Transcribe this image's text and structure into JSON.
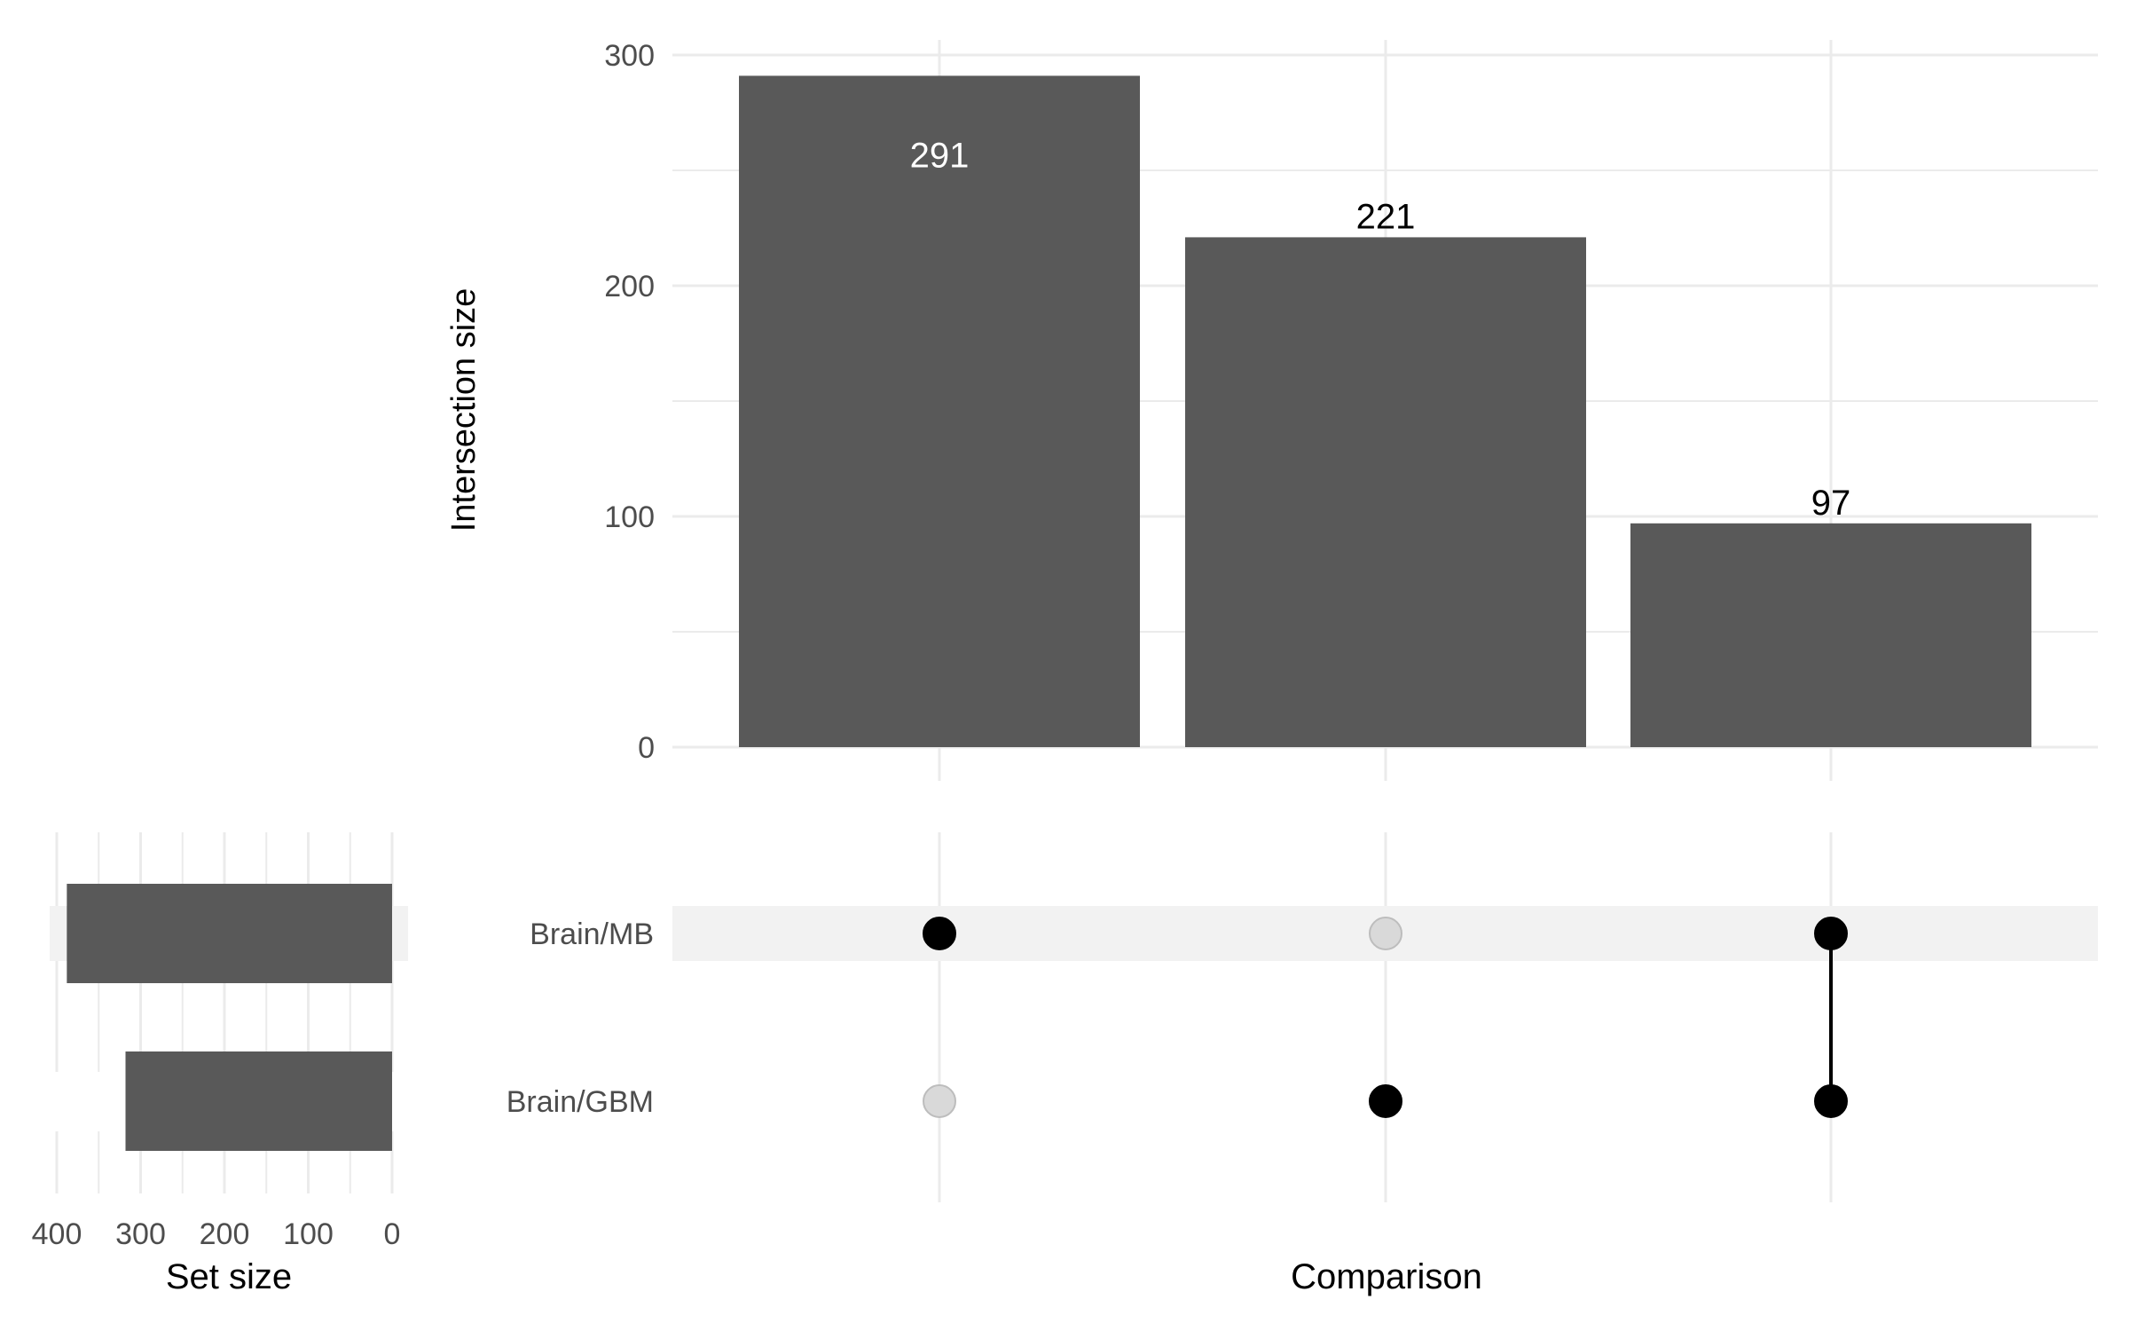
{
  "chart_data": {
    "type": "bar",
    "title": "",
    "intersections": {
      "ylabel": "Intersection size",
      "xlabel": "Comparison",
      "ylim": [
        0,
        300
      ],
      "yticks": [
        0,
        100,
        200,
        300
      ],
      "ytick_labels": [
        "0",
        "100",
        "200",
        "300"
      ],
      "values": [
        291,
        221,
        97
      ],
      "value_labels": [
        "291",
        "221",
        "97"
      ],
      "membership": [
        [
          "Brain/MB"
        ],
        [
          "Brain/GBM"
        ],
        [
          "Brain/MB",
          "Brain/GBM"
        ]
      ],
      "grid": true
    },
    "sets": {
      "names": [
        "Brain/MB",
        "Brain/GBM"
      ],
      "sizes": [
        388,
        318
      ],
      "xlabel": "Set size",
      "xlim": [
        400,
        0
      ],
      "xticks": [
        400,
        300,
        200,
        100,
        0
      ],
      "xtick_labels": [
        "400",
        "300",
        "200",
        "100",
        "0"
      ],
      "grid": true
    },
    "colors": {
      "bar": "#595959",
      "dot_active": "#000000",
      "dot_inactive": "#d9d9d9",
      "dot_inactive_stroke": "#bdbdbd",
      "grid": "#ebebeb",
      "stripe": "#f2f2f2",
      "bar_label_inside": "#ffffff",
      "bar_label_outside": "#000000"
    }
  }
}
